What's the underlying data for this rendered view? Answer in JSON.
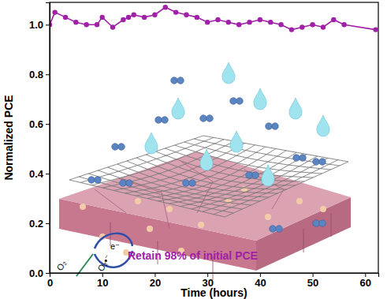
{
  "chart_data": {
    "type": "line",
    "x_label": "Time (hours)",
    "y_label": "Normalized PCE",
    "annotations": [
      "Retain 98% of initial PCE",
      "e⁻",
      "O₂",
      "O₂•⁻"
    ],
    "x": [
      0,
      1,
      3,
      5,
      7,
      9,
      10,
      12,
      14,
      15,
      16,
      18,
      20,
      22,
      24,
      26,
      28,
      30,
      32,
      34,
      36,
      38,
      40,
      42,
      44,
      46,
      48,
      50,
      52,
      54,
      56,
      62
    ],
    "series": [
      {
        "name": "PCE",
        "color": "#a020a8",
        "marker": "circle",
        "line_style": "solid",
        "values": [
          1.0,
          1.05,
          1.03,
          1.01,
          1.0,
          1.0,
          1.03,
          0.99,
          1.02,
          1.03,
          1.04,
          1.03,
          1.04,
          1.07,
          1.05,
          1.04,
          1.03,
          1.01,
          1.02,
          1.01,
          1.0,
          1.01,
          1.02,
          1.01,
          1.0,
          0.98,
          0.99,
          1.0,
          0.99,
          1.02,
          1.0,
          0.98
        ]
      }
    ],
    "xlim": [
      0,
      62.5
    ],
    "ylim": [
      0,
      1.09
    ],
    "xticks": [
      0,
      10,
      20,
      30,
      40,
      50,
      60
    ],
    "yticks": [
      {
        "value": 0,
        "label": "0.0"
      },
      {
        "value": 0.2,
        "label": "0.2"
      },
      {
        "value": 0.4,
        "label": "0.4"
      },
      {
        "value": 0.6,
        "label": "0.6"
      },
      {
        "value": 0.8,
        "label": "0.8"
      },
      {
        "value": 1.0,
        "label": "1.0"
      }
    ],
    "grid": false
  }
}
